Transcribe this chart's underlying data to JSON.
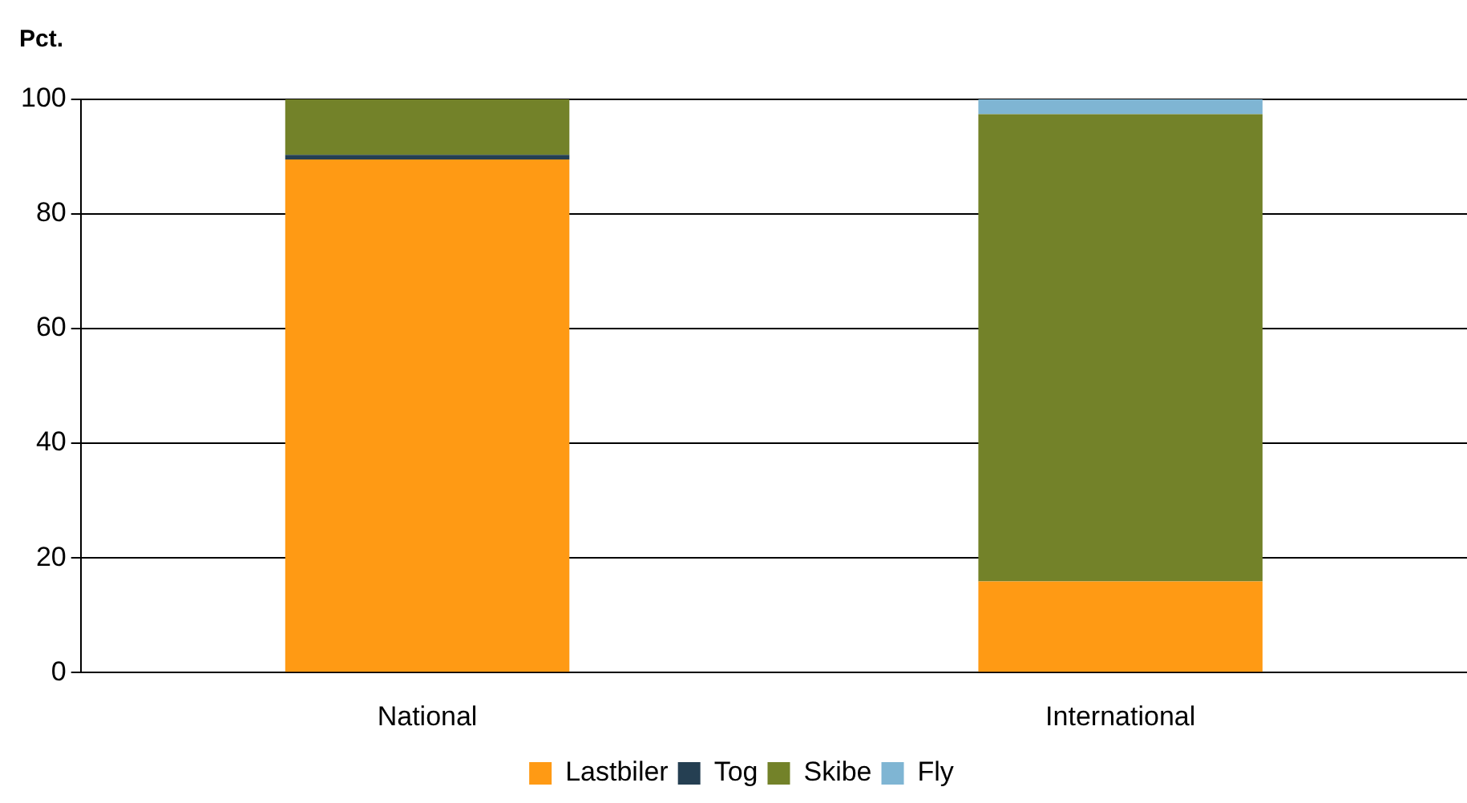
{
  "chart_data": {
    "type": "bar",
    "stacked": true,
    "ylabel": "Pct.",
    "categories": [
      "National",
      "International"
    ],
    "series": [
      {
        "name": "Lastbiler",
        "color": "#ff9a14",
        "values": [
          89.5,
          15.9
        ]
      },
      {
        "name": "Tog",
        "color": "#253f52",
        "values": [
          0.8,
          0
        ]
      },
      {
        "name": "Skibe",
        "color": "#738229",
        "values": [
          9.7,
          81.5
        ]
      },
      {
        "name": "Fly",
        "color": "#7fb5d3",
        "values": [
          0,
          2.6
        ]
      }
    ],
    "ylim": [
      0,
      100
    ],
    "yticks": [
      0,
      20,
      40,
      60,
      80,
      100
    ],
    "grid": "y",
    "legend": "bottom"
  }
}
